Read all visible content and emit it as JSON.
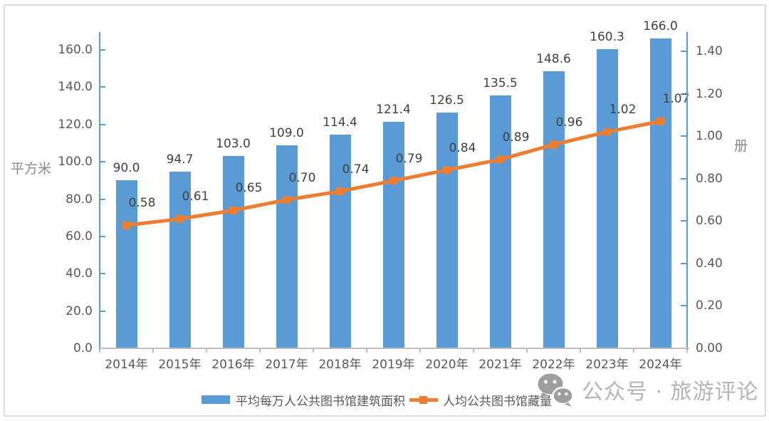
{
  "chart_data": {
    "type": "bar",
    "subtype": "combo bar+line, dual axis",
    "title": "",
    "categories": [
      "2014年",
      "2015年",
      "2016年",
      "2017年",
      "2018年",
      "2019年",
      "2020年",
      "2021年",
      "2022年",
      "2023年",
      "2024年"
    ],
    "series": [
      {
        "name": "平均每万人公共图书馆建筑面积",
        "type": "bar",
        "axis": "left",
        "color": "#5B9BD5",
        "values": [
          90.0,
          94.7,
          103.0,
          109.0,
          114.4,
          121.4,
          126.5,
          135.5,
          148.6,
          160.3,
          166.0
        ],
        "labels": [
          "90.0",
          "94.7",
          "103.0",
          "109.0",
          "114.4",
          "121.4",
          "126.5",
          "135.5",
          "148.6",
          "160.3",
          "166.0"
        ]
      },
      {
        "name": "人均公共图书馆藏量",
        "type": "line",
        "axis": "right",
        "color": "#ED7D31",
        "marker": "square",
        "values": [
          0.58,
          0.61,
          0.65,
          0.7,
          0.74,
          0.79,
          0.84,
          0.89,
          0.96,
          1.02,
          1.07
        ],
        "labels": [
          "0.58",
          "0.61",
          "0.65",
          "0.70",
          "0.74",
          "0.79",
          "0.84",
          "0.89",
          "0.96",
          "1.02",
          "1.07"
        ]
      }
    ],
    "left_axis": {
      "title": "平方米",
      "min": 0,
      "max": 160,
      "step": 20,
      "tick_labels": [
        "0.0",
        "20.0",
        "40.0",
        "60.0",
        "80.0",
        "100.0",
        "120.0",
        "140.0",
        "160.0"
      ]
    },
    "right_axis": {
      "title": "册",
      "min": 0,
      "max": 1.4,
      "step": 0.2,
      "tick_labels": [
        "0.00",
        "0.20",
        "0.40",
        "0.60",
        "0.80",
        "1.00",
        "1.20",
        "1.40"
      ]
    },
    "grid": false,
    "legend_position": "bottom"
  },
  "watermark": {
    "icon": "wechat-icon",
    "text": "公众号 · 旅游评论"
  },
  "colors": {
    "bar": "#5B9BD5",
    "line": "#ED7D31",
    "axis_line": "#5B9BD5",
    "baseline": "#BFBFBF",
    "tick_text": "#595959",
    "data_label_text": "#404040",
    "axis_title_text": "#8A8A8A",
    "watermark": "#B5B5B5",
    "frame_border": "#D9DCE1"
  }
}
